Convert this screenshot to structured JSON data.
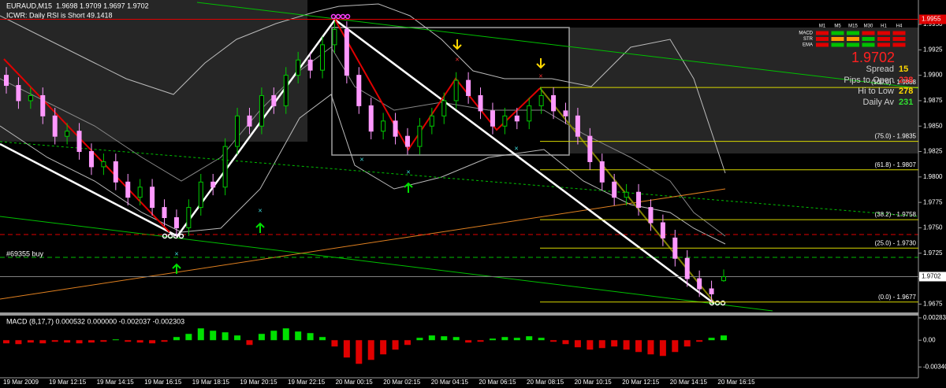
{
  "chart_data": {
    "type": "candlestick",
    "title": "EURAUD,M15  1.9698 1.9709 1.9697 1.9702",
    "subtitle": "ICWR: Daily RSI is Short 49.1418",
    "order_label": "#69355 buy",
    "up_color": "#00cc00",
    "down_color": "#ff99ff",
    "ylim": [
      1.9666,
      1.9974
    ],
    "yticks": [
      {
        "value": 1.995,
        "label": "1.9950"
      },
      1.9925,
      {
        "value": 1.99,
        "label": "1.9900"
      },
      1.9875,
      {
        "value": 1.985,
        "label": "1.9850"
      },
      1.9825,
      {
        "value": 1.98,
        "label": "1.9800"
      },
      1.9775,
      {
        "value": 1.975,
        "label": "1.9750"
      },
      1.9725,
      {
        "value": 1.97,
        "label": "1.9700"
      },
      1.9675
    ],
    "markers": [
      {
        "label": "1.9955",
        "value": 1.9955,
        "color": "#e00000",
        "text_color": "#ffffff"
      },
      {
        "label": "1.9702",
        "value": 1.9702,
        "color": "#ffffff",
        "text_color": "#000000"
      }
    ],
    "x_labels": [
      "19 Mar 2009",
      "19 Mar 12:15",
      "19 Mar 14:15",
      "19 Mar 16:15",
      "19 Mar 18:15",
      "19 Mar 20:15",
      "19 Mar 22:15",
      "20 Mar 00:15",
      "20 Mar 02:15",
      "20 Mar 04:15",
      "20 Mar 06:15",
      "20 Mar 08:15",
      "20 Mar 10:15",
      "20 Mar 12:15",
      "20 Mar 14:15",
      "20 Mar 16:15"
    ],
    "candles": [
      [
        1.99,
        1.9908,
        1.9882,
        1.989
      ],
      [
        1.989,
        1.9898,
        1.9867,
        1.9875
      ],
      [
        1.9875,
        1.9888,
        1.9867,
        1.988
      ],
      [
        1.988,
        1.9888,
        1.9852,
        1.986
      ],
      [
        1.986,
        1.9868,
        1.9832,
        1.984
      ],
      [
        1.984,
        1.9853,
        1.9832,
        1.9845
      ],
      [
        1.9845,
        1.9853,
        1.9817,
        1.9825
      ],
      [
        1.9825,
        1.9833,
        1.9802,
        1.981
      ],
      [
        1.981,
        1.9823,
        1.9802,
        1.9815
      ],
      [
        1.9815,
        1.9823,
        1.9787,
        1.9795
      ],
      [
        1.9795,
        1.9803,
        1.9772,
        1.978
      ],
      [
        1.978,
        1.9798,
        1.9772,
        1.979
      ],
      [
        1.979,
        1.9798,
        1.9762,
        1.977
      ],
      [
        1.977,
        1.9778,
        1.9752,
        1.976
      ],
      [
        1.976,
        1.9768,
        1.9742,
        1.975
      ],
      [
        1.975,
        1.9778,
        1.9742,
        1.977
      ],
      [
        1.977,
        1.9803,
        1.9762,
        1.9795
      ],
      [
        1.9795,
        1.9803,
        1.9782,
        1.979
      ],
      [
        1.979,
        1.9838,
        1.9782,
        1.983
      ],
      [
        1.983,
        1.9868,
        1.9822,
        1.986
      ],
      [
        1.986,
        1.9868,
        1.9842,
        1.985
      ],
      [
        1.985,
        1.9888,
        1.9842,
        1.988
      ],
      [
        1.988,
        1.9888,
        1.9862,
        1.987
      ],
      [
        1.987,
        1.9908,
        1.9862,
        1.99
      ],
      [
        1.99,
        1.9923,
        1.9892,
        1.9915
      ],
      [
        1.9915,
        1.9923,
        1.9897,
        1.9905
      ],
      [
        1.9905,
        1.9938,
        1.9897,
        1.993
      ],
      [
        1.993,
        1.9953,
        1.9922,
        1.9945
      ],
      [
        1.9945,
        1.9953,
        1.9892,
        1.99
      ],
      [
        1.99,
        1.9908,
        1.9862,
        1.987
      ],
      [
        1.987,
        1.9878,
        1.9837,
        1.9845
      ],
      [
        1.9845,
        1.9863,
        1.9837,
        1.9855
      ],
      [
        1.9855,
        1.9863,
        1.9832,
        1.984
      ],
      [
        1.984,
        1.9848,
        1.9822,
        1.983
      ],
      [
        1.983,
        1.9858,
        1.9822,
        1.985
      ],
      [
        1.985,
        1.9868,
        1.9842,
        1.986
      ],
      [
        1.986,
        1.9883,
        1.9852,
        1.9875
      ],
      [
        1.9875,
        1.9903,
        1.9867,
        1.9895
      ],
      [
        1.9895,
        1.9903,
        1.9872,
        1.988
      ],
      [
        1.988,
        1.9888,
        1.9857,
        1.9865
      ],
      [
        1.9865,
        1.9873,
        1.9842,
        1.985
      ],
      [
        1.985,
        1.9868,
        1.9842,
        1.986
      ],
      [
        1.986,
        1.9868,
        1.9847,
        1.9855
      ],
      [
        1.9855,
        1.9878,
        1.9847,
        1.987
      ],
      [
        1.987,
        1.9888,
        1.9862,
        1.988
      ],
      [
        1.988,
        1.9888,
        1.9857,
        1.9865
      ],
      [
        1.9865,
        1.9873,
        1.9852,
        1.986
      ],
      [
        1.986,
        1.9868,
        1.9832,
        1.984
      ],
      [
        1.984,
        1.9848,
        1.9807,
        1.9815
      ],
      [
        1.9815,
        1.9823,
        1.9787,
        1.9795
      ],
      [
        1.9795,
        1.9803,
        1.9772,
        1.978
      ],
      [
        1.978,
        1.9793,
        1.9772,
        1.9785
      ],
      [
        1.9785,
        1.9793,
        1.9762,
        1.977
      ],
      [
        1.977,
        1.9778,
        1.9747,
        1.9755
      ],
      [
        1.9755,
        1.9763,
        1.9732,
        1.974
      ],
      [
        1.974,
        1.9748,
        1.9712,
        1.972
      ],
      [
        1.972,
        1.9728,
        1.9692,
        1.97
      ],
      [
        1.97,
        1.9708,
        1.9682,
        1.969
      ],
      [
        1.969,
        1.9698,
        1.9677,
        1.9685
      ],
      [
        1.9698,
        1.9709,
        1.9697,
        1.9702
      ]
    ],
    "fib_levels": [
      {
        "label": "(100.0) - 1.9888",
        "value": 1.9888
      },
      {
        "label": "(75.0) - 1.9835",
        "value": 1.9835
      },
      {
        "label": "(61.8) - 1.9807",
        "value": 1.9807
      },
      {
        "label": "(38.2) - 1.9758",
        "value": 1.9758
      },
      {
        "label": "(25.0) - 1.9730",
        "value": 1.973
      },
      {
        "label": "(0.0) - 1.9677",
        "value": 1.9677
      }
    ],
    "fib_color": "#d8d800",
    "macd": {
      "label": "MACD (8,17,7) 0.000532 0.000000 -0.002037 -0.002303",
      "up_color": "#00e000",
      "down_color": "#e00000",
      "ylim": [
        -0.00477,
        0.00312
      ],
      "yticks": [
        0.00283,
        {
          "value": 0,
          "label": "0.00"
        },
        {
          "value": -0.0034,
          "label": "-0.00340"
        }
      ],
      "values": [
        -0.0004,
        -0.0005,
        -0.0003,
        -0.0004,
        -0.0002,
        -0.0003,
        -0.0004,
        -0.0003,
        -0.0002,
        0.0001,
        -0.0002,
        -0.0003,
        -0.0004,
        -0.0002,
        0.0004,
        0.0008,
        0.0015,
        0.0012,
        0.001,
        0.0006,
        -0.0006,
        0.0008,
        0.0012,
        0.0015,
        0.0011,
        0.0009,
        0.0004,
        -0.0008,
        -0.0022,
        -0.003,
        -0.0025,
        -0.0018,
        -0.0012,
        -0.0006,
        0.0003,
        0.0006,
        0.0005,
        0.0004,
        -0.0003,
        -0.0002,
        0.0002,
        0.0004,
        0.0003,
        0.0005,
        0.0003,
        -0.0002,
        -0.0005,
        -0.0009,
        -0.0012,
        -0.001,
        -0.0008,
        -0.0012,
        -0.0015,
        -0.0018,
        -0.002,
        -0.0015,
        -0.0008,
        -0.0002,
        0.0003,
        0.0006
      ]
    }
  },
  "panel": {
    "columns": [
      "M1",
      "M5",
      "M15",
      "M30",
      "H1",
      "H4"
    ],
    "rows": [
      "MACD",
      "STR",
      "EMA"
    ],
    "signals": [
      [
        "#e00000",
        "#00c000",
        "#00c000",
        "#e00000",
        "#e00000",
        "#e00000"
      ],
      [
        "#e00000",
        "#ff9900",
        "#ff9900",
        "#00c000",
        "#e00000",
        "#e00000"
      ],
      [
        "#e00000",
        "#00c000",
        "#00c000",
        "#00c000",
        "#e00000",
        "#e00000"
      ]
    ],
    "price": "1.9702",
    "stats": [
      {
        "label": "Spread",
        "value": 15,
        "color": "#ffd800"
      },
      {
        "label": "Pips to Open",
        "value": 238,
        "color": "#ff3030"
      },
      {
        "label": "Hi to Low",
        "value": 278,
        "color": "#ffd800"
      },
      {
        "label": "Daily Av",
        "value": 231,
        "color": "#30e030"
      }
    ]
  }
}
